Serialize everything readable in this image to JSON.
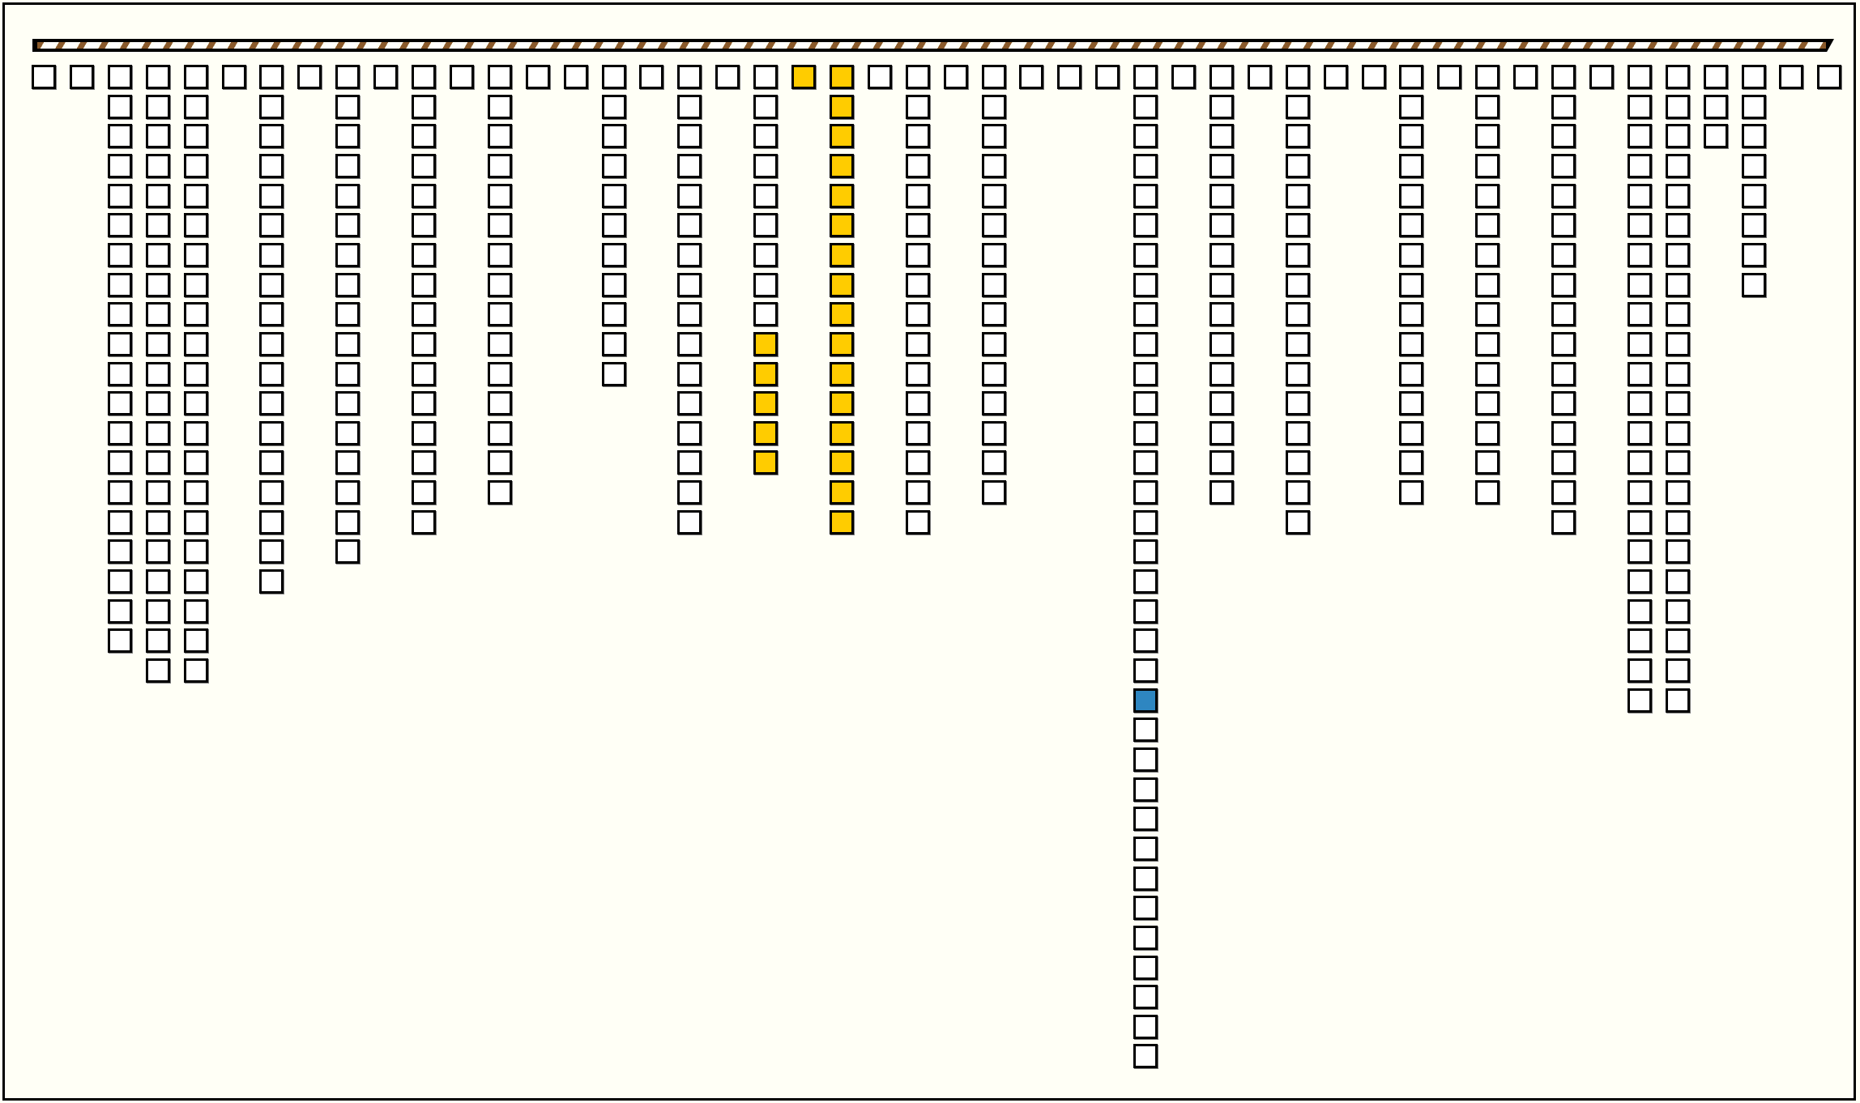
{
  "game": {
    "rail": {
      "pattern": "striped-rope",
      "colors": [
        "#8a5a2b",
        "#ffffff"
      ]
    },
    "colors": {
      "empty": "#ffffff",
      "yellow": "#ffcc00",
      "blue": "#2e86c1",
      "background": "#fffff6"
    },
    "column_counts": [
      1,
      1,
      20,
      21,
      21,
      1,
      18,
      1,
      17,
      1,
      16,
      1,
      15,
      1,
      1,
      11,
      1,
      16,
      1,
      14,
      1,
      16,
      1,
      16,
      1,
      15,
      1,
      1,
      1,
      34,
      1,
      15,
      1,
      16,
      1,
      1,
      15,
      1,
      15,
      1,
      16,
      1,
      22,
      22,
      3,
      8,
      1,
      1
    ],
    "highlights": [
      {
        "column": 19,
        "from_row": 9,
        "to_row": 13,
        "color": "yellow"
      },
      {
        "column": 20,
        "from_row": 0,
        "to_row": 0,
        "color": "yellow"
      },
      {
        "column": 21,
        "from_row": 0,
        "to_row": 15,
        "color": "yellow"
      },
      {
        "column": 29,
        "from_row": 21,
        "to_row": 21,
        "color": "blue"
      }
    ]
  }
}
